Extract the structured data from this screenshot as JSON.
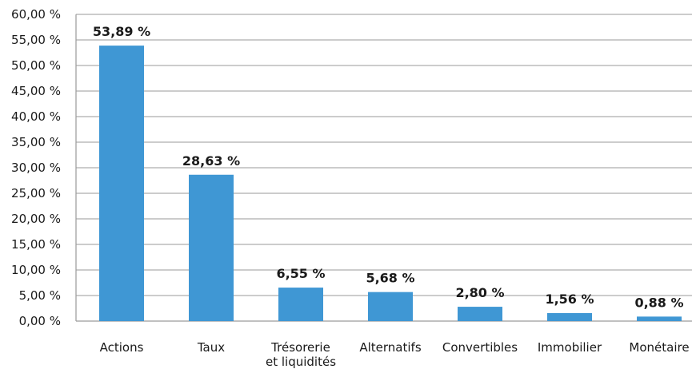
{
  "chart_data": {
    "type": "bar",
    "categories": [
      [
        "Actions"
      ],
      [
        "Taux"
      ],
      [
        "Trésorerie",
        "et liquidités"
      ],
      [
        "Alternatifs"
      ],
      [
        "Convertibles"
      ],
      [
        "Immobilier"
      ],
      [
        "Monétaire"
      ]
    ],
    "values": [
      53.89,
      28.63,
      6.55,
      5.68,
      2.8,
      1.56,
      0.88
    ],
    "data_labels": [
      "53,89 %",
      "28,63 %",
      "6,55 %",
      "5,68 %",
      "2,80 %",
      "1,56 %",
      "0,88 %"
    ],
    "title": "",
    "xlabel": "",
    "ylabel": "",
    "ylim": [
      0,
      60
    ],
    "yticks": [
      0,
      5,
      10,
      15,
      20,
      25,
      30,
      35,
      40,
      45,
      50,
      55,
      60
    ],
    "ytick_labels": [
      "0,00 %",
      "5,00 %",
      "10,00 %",
      "15,00 %",
      "20,00 %",
      "25,00 %",
      "30,00 %",
      "35,00 %",
      "40,00 %",
      "45,00 %",
      "50,00 %",
      "55,00 %",
      "60,00 %"
    ],
    "grid": true,
    "legend": "none",
    "colors": {
      "bar": "#3f97d4",
      "grid": "#9a9a9a",
      "axis": "#9a9a9a",
      "text": "#1a1a1a"
    }
  }
}
